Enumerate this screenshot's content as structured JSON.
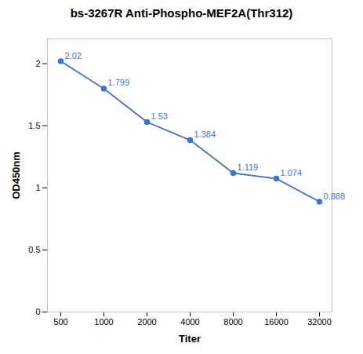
{
  "chart_data": {
    "type": "line",
    "title": "bs-3267R Anti-Phospho-MEF2A(Thr312)",
    "x_label": "Titer",
    "y_label": "OD450nm",
    "categories": [
      "500",
      "1000",
      "2000",
      "4000",
      "8000",
      "16000",
      "32000"
    ],
    "values": [
      2.02,
      1.799,
      1.53,
      1.384,
      1.119,
      1.074,
      0.888
    ],
    "value_labels": [
      "2.02",
      "1.799",
      "1.53",
      "1.384",
      "1.119",
      "1.074",
      "0.888"
    ],
    "color": "#4472C4",
    "marker": "circle",
    "ylim": [
      0,
      2.2
    ],
    "yticks": [
      0,
      0.5,
      1,
      1.5,
      2
    ],
    "data_labels": true,
    "grid": false
  }
}
